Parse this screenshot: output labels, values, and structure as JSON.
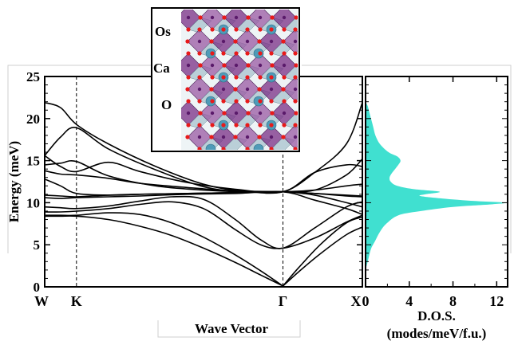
{
  "chart_data": [
    {
      "type": "line",
      "ylabel": "Energy (meV)",
      "xlabel": "Wave Vector",
      "ylim": [
        0,
        25
      ],
      "yticks": [
        "0",
        "5",
        "10",
        "15",
        "20",
        "25"
      ],
      "x_points": [
        "W",
        "K",
        "Γ",
        "X"
      ],
      "x_point_positions": [
        0.0,
        0.1,
        0.75,
        1.0
      ],
      "dashed_lines_at": [
        "K",
        "Γ"
      ],
      "series": [
        {
          "x": [
            0,
            0.05,
            0.1,
            0.2,
            0.35,
            0.5,
            0.62,
            0.75,
            0.85,
            0.95,
            1.0
          ],
          "y": [
            21.9,
            21.3,
            19.3,
            17.0,
            14.3,
            12.2,
            11.4,
            11.3,
            13.6,
            17.0,
            21.9
          ]
        },
        {
          "x": [
            0,
            0.05,
            0.1,
            0.2,
            0.35,
            0.5,
            0.62,
            0.75,
            0.85,
            0.95,
            1.0
          ],
          "y": [
            15.6,
            17.8,
            18.9,
            16.4,
            13.9,
            11.9,
            11.3,
            11.3,
            11.5,
            13.3,
            15.2
          ]
        },
        {
          "x": [
            0,
            0.05,
            0.1,
            0.2,
            0.3,
            0.45,
            0.6,
            0.75,
            0.85,
            0.95,
            1.0
          ],
          "y": [
            15.6,
            14.3,
            13.7,
            14.8,
            13.7,
            12.4,
            11.6,
            11.3,
            13.6,
            14.5,
            14.3
          ]
        },
        {
          "x": [
            0,
            0.05,
            0.1,
            0.2,
            0.35,
            0.5,
            0.62,
            0.75,
            0.85,
            0.95,
            1.0
          ],
          "y": [
            14.5,
            14.7,
            14.9,
            13.2,
            12.0,
            11.5,
            11.3,
            11.3,
            11.5,
            12.0,
            12.2
          ]
        },
        {
          "x": [
            0,
            0.05,
            0.1,
            0.2,
            0.3,
            0.45,
            0.6,
            0.75,
            0.85,
            0.95,
            1.0
          ],
          "y": [
            13.8,
            13.4,
            13.3,
            12.9,
            12.3,
            11.8,
            11.4,
            11.3,
            11.1,
            10.9,
            10.8
          ]
        },
        {
          "x": [
            0,
            0.05,
            0.1,
            0.2,
            0.3,
            0.45,
            0.6,
            0.75,
            0.85,
            0.95,
            1.0
          ],
          "y": [
            12.8,
            12.0,
            11.1,
            10.9,
            11.0,
            11.1,
            11.2,
            11.3,
            11.1,
            10.8,
            10.7
          ]
        },
        {
          "x": [
            0,
            0.05,
            0.1,
            0.2,
            0.3,
            0.45,
            0.6,
            0.75,
            0.85,
            0.95,
            1.0
          ],
          "y": [
            10.9,
            10.8,
            10.7,
            10.9,
            11.0,
            11.1,
            11.2,
            11.3,
            10.9,
            10.0,
            9.5
          ]
        },
        {
          "x": [
            0,
            0.05,
            0.1,
            0.2,
            0.3,
            0.45,
            0.6,
            0.75,
            0.85,
            0.95,
            1.0
          ],
          "y": [
            10.6,
            10.5,
            10.6,
            10.7,
            10.8,
            11.0,
            11.1,
            11.3,
            10.3,
            9.3,
            8.6
          ]
        },
        {
          "x": [
            0,
            0.05,
            0.1,
            0.2,
            0.3,
            0.4,
            0.5,
            0.6,
            0.68,
            0.75,
            0.85,
            0.95,
            1.0
          ],
          "y": [
            9.5,
            9.4,
            9.3,
            9.6,
            10.2,
            10.7,
            10.4,
            8.0,
            5.6,
            4.6,
            7.0,
            9.5,
            10.1
          ]
        },
        {
          "x": [
            0,
            0.05,
            0.1,
            0.2,
            0.3,
            0.4,
            0.5,
            0.6,
            0.68,
            0.75,
            0.85,
            0.95,
            1.0
          ],
          "y": [
            8.9,
            8.9,
            9.0,
            9.3,
            9.8,
            10.1,
            9.3,
            6.8,
            5.0,
            4.6,
            5.8,
            7.7,
            8.5
          ]
        },
        {
          "x": [
            0,
            0.05,
            0.1,
            0.2,
            0.3,
            0.4,
            0.5,
            0.6,
            0.68,
            0.75
          ],
          "y": [
            8.5,
            8.5,
            8.5,
            8.8,
            8.6,
            7.6,
            5.9,
            3.8,
            1.9,
            0.1
          ]
        },
        {
          "x": [
            0,
            0.05,
            0.1,
            0.2,
            0.3,
            0.4,
            0.5,
            0.6,
            0.68,
            0.75
          ],
          "y": [
            8.4,
            8.4,
            8.4,
            8.0,
            7.2,
            6.1,
            4.6,
            2.9,
            1.4,
            0.1
          ]
        },
        {
          "x": [
            0.75,
            0.8,
            0.87,
            0.95,
            1.0
          ],
          "y": [
            0.1,
            2.3,
            5.1,
            7.6,
            8.3
          ]
        },
        {
          "x": [
            0.75,
            0.8,
            0.87,
            0.95,
            1.0
          ],
          "y": [
            0.1,
            1.8,
            4.0,
            6.2,
            7.1
          ]
        }
      ]
    },
    {
      "type": "area",
      "xlabel": "D.O.S.",
      "xlabel_line2": "(modes/meV/f.u.)",
      "xlim": [
        0,
        13
      ],
      "xticks": [
        "0",
        "4",
        "8",
        "12"
      ],
      "ylim": [
        0,
        25
      ],
      "color": "#40e0d0",
      "energy": [
        2.0,
        3.0,
        4.5,
        5.5,
        6.5,
        7.5,
        8.5,
        9.0,
        9.5,
        9.8,
        10.0,
        10.2,
        10.5,
        10.8,
        11.0,
        11.3,
        11.6,
        12.0,
        12.5,
        13.0,
        13.5,
        14.0,
        14.5,
        15.0,
        15.5,
        16.0,
        17.0,
        18.0,
        19.0,
        20.0,
        21.0,
        21.5,
        22.0
      ],
      "dos": [
        0,
        0.2,
        0.5,
        0.9,
        1.3,
        1.9,
        3.0,
        5.0,
        8.0,
        11.5,
        12.8,
        10.0,
        7.0,
        5.0,
        5.5,
        6.8,
        4.5,
        2.9,
        2.3,
        2.2,
        2.4,
        2.7,
        3.0,
        3.2,
        2.9,
        2.1,
        1.3,
        0.9,
        0.7,
        0.5,
        0.3,
        0.2,
        0
      ]
    }
  ],
  "inset": {
    "labels": [
      {
        "text": "Os",
        "color": "#9b1d5e"
      },
      {
        "text": "Ca",
        "color": "#157a80"
      },
      {
        "text": "O",
        "color": "#e81a1a"
      }
    ]
  }
}
